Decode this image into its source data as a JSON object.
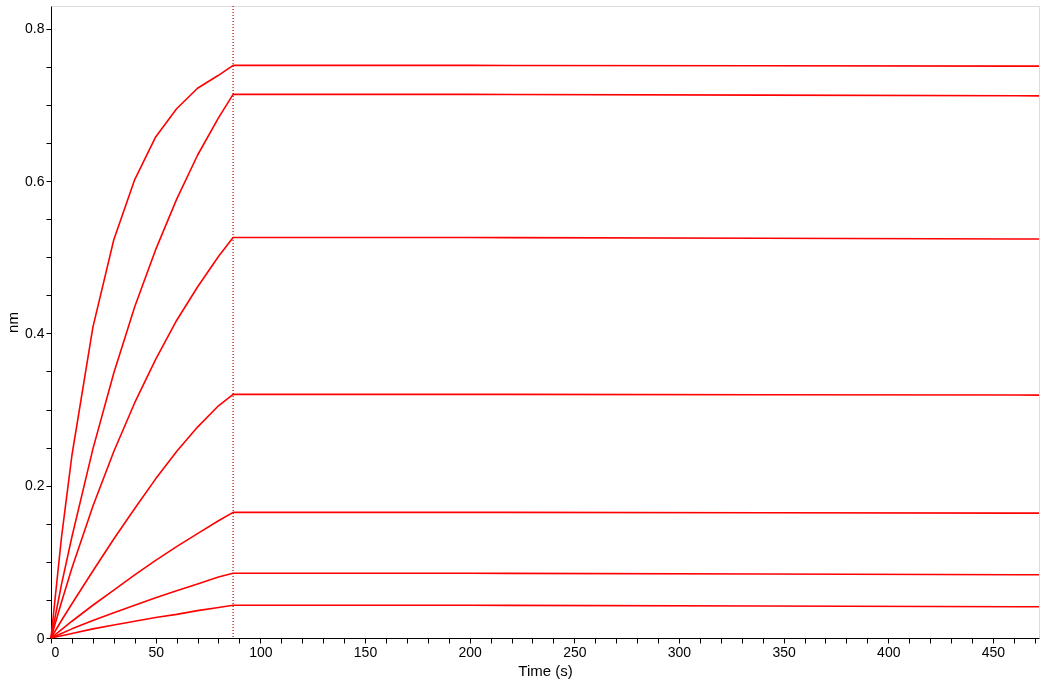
{
  "chart_data": {
    "type": "line",
    "xlabel": "Time (s)",
    "ylabel": "nm",
    "xlim": [
      0,
      472
    ],
    "ylim": [
      0,
      0.83
    ],
    "xticks": [
      0,
      {
        "value": 10,
        "label": null
      },
      {
        "value": 20,
        "label": null
      },
      {
        "value": 30,
        "label": null
      },
      {
        "value": 40,
        "label": null
      },
      50,
      {
        "value": 60,
        "label": null
      },
      {
        "value": 70,
        "label": null
      },
      {
        "value": 80,
        "label": null
      },
      {
        "value": 90,
        "label": null
      },
      100,
      {
        "value": 110,
        "label": null
      },
      {
        "value": 120,
        "label": null
      },
      {
        "value": 130,
        "label": null
      },
      {
        "value": 140,
        "label": null
      },
      150,
      {
        "value": 160,
        "label": null
      },
      {
        "value": 170,
        "label": null
      },
      {
        "value": 180,
        "label": null
      },
      {
        "value": 190,
        "label": null
      },
      200,
      {
        "value": 210,
        "label": null
      },
      {
        "value": 220,
        "label": null
      },
      {
        "value": 230,
        "label": null
      },
      {
        "value": 240,
        "label": null
      },
      250,
      {
        "value": 260,
        "label": null
      },
      {
        "value": 270,
        "label": null
      },
      {
        "value": 280,
        "label": null
      },
      {
        "value": 290,
        "label": null
      },
      300,
      {
        "value": 310,
        "label": null
      },
      {
        "value": 320,
        "label": null
      },
      {
        "value": 330,
        "label": null
      },
      {
        "value": 340,
        "label": null
      },
      350,
      {
        "value": 360,
        "label": null
      },
      {
        "value": 370,
        "label": null
      },
      {
        "value": 380,
        "label": null
      },
      {
        "value": 390,
        "label": null
      },
      400,
      {
        "value": 410,
        "label": null
      },
      {
        "value": 420,
        "label": null
      },
      {
        "value": 430,
        "label": null
      },
      {
        "value": 440,
        "label": null
      },
      450,
      {
        "value": 460,
        "label": null
      },
      {
        "value": 470,
        "label": null
      }
    ],
    "yticks": [
      0,
      {
        "value": 0.05,
        "label": null
      },
      {
        "value": 0.1,
        "label": null
      },
      {
        "value": 0.15,
        "label": null
      },
      0.2,
      {
        "value": 0.25,
        "label": null
      },
      {
        "value": 0.3,
        "label": null
      },
      {
        "value": 0.35,
        "label": null
      },
      0.4,
      {
        "value": 0.45,
        "label": null
      },
      {
        "value": 0.5,
        "label": null
      },
      {
        "value": 0.55,
        "label": null
      },
      0.6,
      {
        "value": 0.65,
        "label": null
      },
      {
        "value": 0.7,
        "label": null
      },
      {
        "value": 0.75,
        "label": null
      },
      0.8
    ],
    "x": [
      0,
      5,
      10,
      20,
      30,
      40,
      50,
      60,
      70,
      80,
      87,
      200,
      472
    ],
    "series": [
      {
        "color": "#ff0000",
        "values": [
          0,
          0.132,
          0.24,
          0.408,
          0.523,
          0.602,
          0.658,
          0.695,
          0.722,
          0.739,
          0.752,
          0.752,
          0.751
        ]
      },
      {
        "color": "#ff0000",
        "values": [
          0,
          0.07,
          0.133,
          0.248,
          0.348,
          0.435,
          0.51,
          0.576,
          0.634,
          0.683,
          0.714,
          0.714,
          0.712
        ]
      },
      {
        "color": "#ff0000",
        "values": [
          0,
          0.047,
          0.092,
          0.173,
          0.245,
          0.309,
          0.366,
          0.417,
          0.461,
          0.501,
          0.526,
          0.526,
          0.524
        ]
      },
      {
        "color": "#ff0000",
        "values": [
          0,
          0.023,
          0.045,
          0.088,
          0.13,
          0.17,
          0.209,
          0.245,
          0.277,
          0.305,
          0.32,
          0.32,
          0.319
        ]
      },
      {
        "color": "#ff0000",
        "values": [
          0,
          0.011,
          0.022,
          0.043,
          0.063,
          0.083,
          0.102,
          0.12,
          0.137,
          0.154,
          0.165,
          0.165,
          0.164
        ]
      },
      {
        "color": "#ff0000",
        "values": [
          0,
          0.006,
          0.012,
          0.023,
          0.033,
          0.043,
          0.053,
          0.062,
          0.071,
          0.08,
          0.085,
          0.085,
          0.083
        ]
      },
      {
        "color": "#ff0000",
        "values": [
          0,
          0.003,
          0.006,
          0.012,
          0.017,
          0.022,
          0.027,
          0.031,
          0.036,
          0.04,
          0.043,
          0.043,
          0.041
        ]
      }
    ],
    "ref_lines": [
      {
        "axis": "x",
        "value": 87,
        "color": "#c00000",
        "line_style": "dotted"
      }
    ],
    "grid": false,
    "legend": false,
    "marker": "none",
    "line_style": "solid"
  }
}
